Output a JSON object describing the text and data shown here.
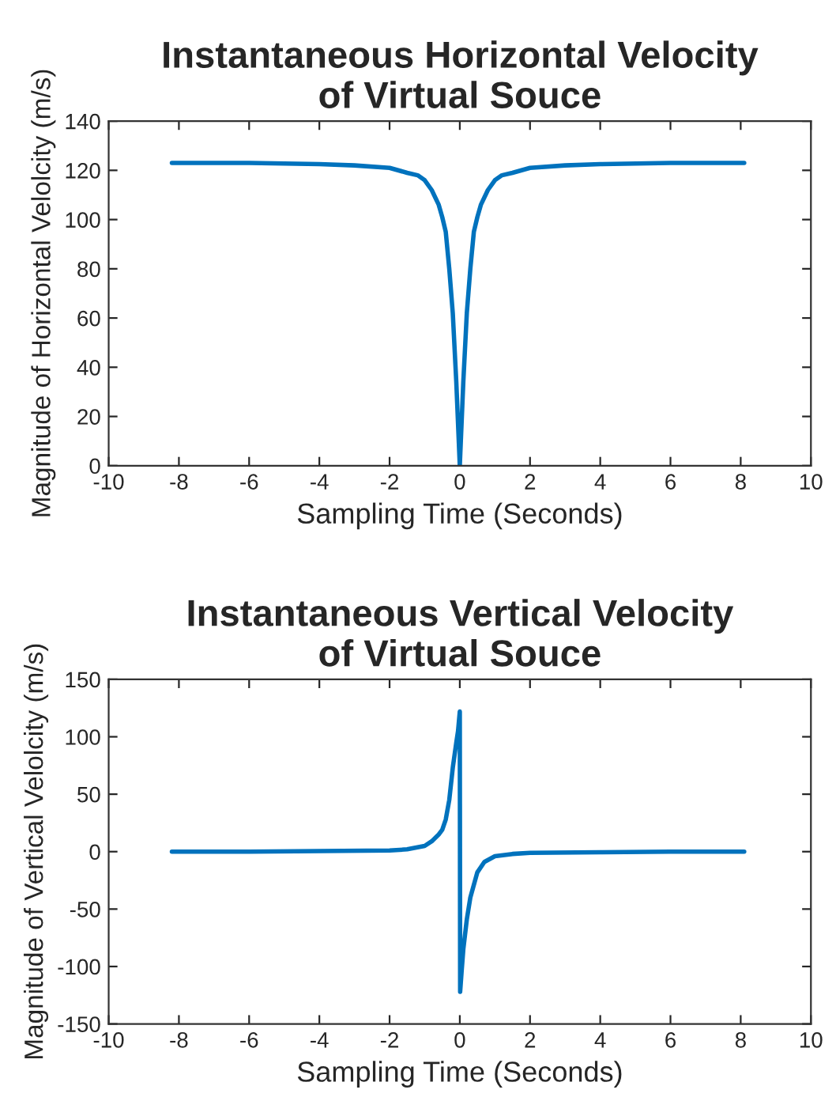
{
  "chart_data": [
    {
      "type": "line",
      "title": "Instantaneous Horizontal Velocity\nof Virtual Souce",
      "xlabel": "Sampling Time (Seconds)",
      "ylabel": "Magnitude of Horizontal Velolcity (m/s)",
      "xlim": [
        -10,
        10
      ],
      "ylim": [
        0,
        140
      ],
      "xticks": [
        -10,
        -8,
        -6,
        -4,
        -2,
        0,
        2,
        4,
        6,
        8,
        10
      ],
      "yticks": [
        0,
        20,
        40,
        60,
        80,
        100,
        120,
        140
      ],
      "grid": false,
      "legend": false,
      "series": [
        {
          "color": "#0072bd",
          "x": [
            -8.2,
            -6,
            -4,
            -3,
            -2,
            -1.5,
            -1.2,
            -1,
            -0.8,
            -0.6,
            -0.5,
            -0.4,
            -0.3,
            -0.2,
            -0.1,
            0,
            0.1,
            0.2,
            0.3,
            0.4,
            0.5,
            0.6,
            0.8,
            1,
            1.2,
            1.5,
            2,
            3,
            4,
            6,
            8.1
          ],
          "values": [
            123,
            123,
            122.5,
            122,
            121,
            119,
            118,
            116,
            112,
            106,
            101,
            95,
            80,
            62,
            34,
            0,
            34,
            62,
            80,
            95,
            101,
            106,
            112,
            116,
            118,
            119,
            121,
            122,
            122.5,
            123,
            123
          ]
        }
      ]
    },
    {
      "type": "line",
      "title": "Instantaneous Vertical Velocity\nof Virtual Souce",
      "xlabel": "Sampling Time (Seconds)",
      "ylabel": "Magnitude of Vertical Velolcity (m/s)",
      "xlim": [
        -10,
        10
      ],
      "ylim": [
        -150,
        150
      ],
      "xticks": [
        -10,
        -8,
        -6,
        -4,
        -2,
        0,
        2,
        4,
        6,
        8,
        10
      ],
      "yticks": [
        -150,
        -100,
        -50,
        0,
        50,
        100,
        150
      ],
      "grid": false,
      "legend": false,
      "series": [
        {
          "color": "#0072bd",
          "x": [
            -8.2,
            -6,
            -4,
            -2,
            -1.5,
            -1,
            -0.8,
            -0.6,
            -0.5,
            -0.4,
            -0.3,
            -0.2,
            -0.1,
            -0.05,
            0,
            0.01,
            0.05,
            0.1,
            0.2,
            0.3,
            0.5,
            0.7,
            1,
            1.5,
            2,
            4,
            6,
            8.1
          ],
          "values": [
            0,
            0,
            0.5,
            1,
            2,
            5,
            9,
            15,
            19,
            28,
            45,
            73,
            95,
            105,
            122,
            -122,
            -105,
            -85,
            -59,
            -40,
            -18,
            -9,
            -4,
            -2,
            -1,
            -0.5,
            0,
            0
          ]
        }
      ]
    }
  ]
}
